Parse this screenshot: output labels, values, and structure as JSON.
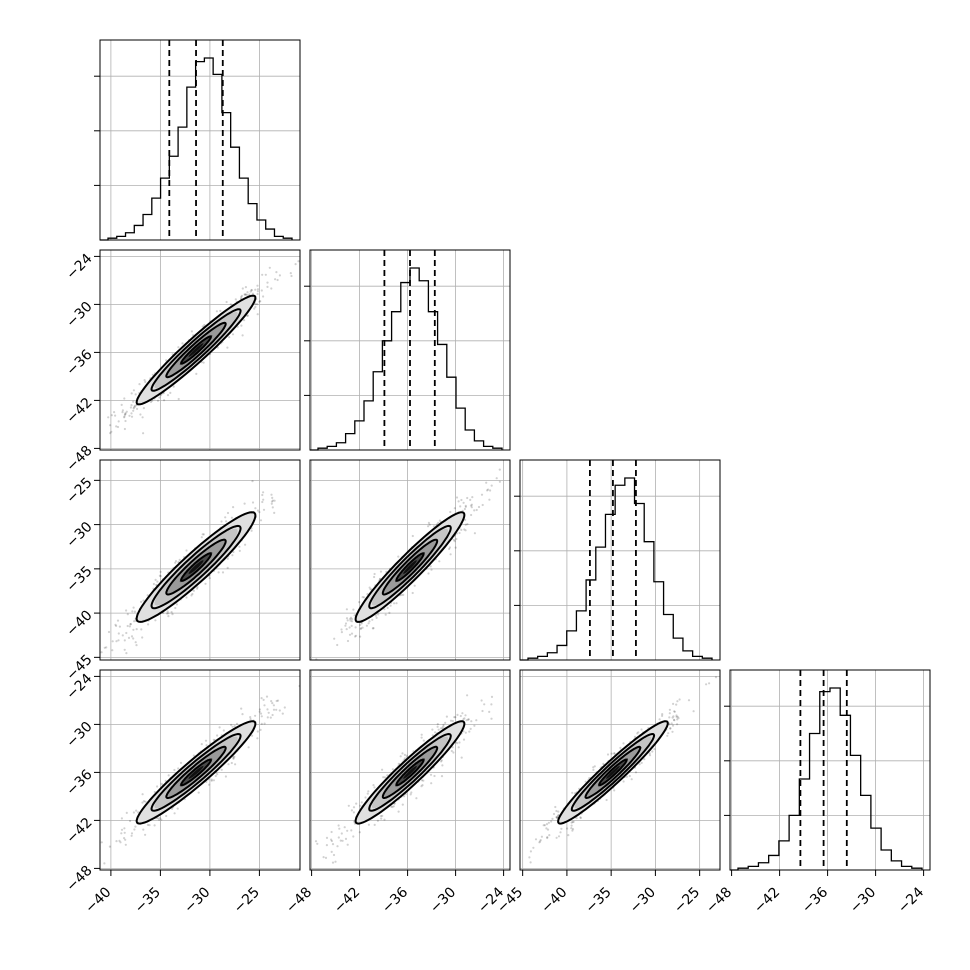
{
  "chart_data": {
    "type": "scatter",
    "subtype": "corner_plot",
    "grid": true,
    "n_params": 4,
    "params": [
      {
        "id": "p0",
        "ticks": [
          -40,
          -35,
          -30,
          -25
        ],
        "tick_labels": [
          "−40",
          "−35",
          "−30",
          "−25"
        ],
        "range": [
          -41.1,
          -20.9
        ],
        "mean": -31.4,
        "sigma": 3.0,
        "quantiles": [
          -34.1,
          -31.4,
          -28.7
        ],
        "hist_counts": [
          1,
          2,
          4,
          8,
          14,
          23,
          34,
          46,
          62,
          84,
          98,
          100,
          91,
          70,
          51,
          34,
          20,
          11,
          6,
          2,
          1
        ]
      },
      {
        "id": "p1",
        "ticks": [
          -48,
          -42,
          -36,
          -30,
          -24
        ],
        "tick_labels": [
          "−48",
          "−42",
          "−36",
          "−30",
          "−24"
        ],
        "range": [
          -48.2,
          -23.2
        ],
        "mean": -35.7,
        "sigma": 3.4,
        "quantiles": [
          -38.9,
          -35.7,
          -32.6
        ],
        "hist_counts": [
          1,
          2,
          4,
          9,
          16,
          27,
          43,
          60,
          76,
          92,
          100,
          93,
          76,
          58,
          40,
          23,
          11,
          5,
          2,
          1
        ]
      },
      {
        "id": "p2",
        "ticks": [
          -45,
          -40,
          -35,
          -30,
          -25
        ],
        "tick_labels": [
          "−45",
          "−40",
          "−35",
          "−30",
          "−25"
        ],
        "range": [
          -45.3,
          -22.7
        ],
        "mean": -34.8,
        "sigma": 3.1,
        "quantiles": [
          -37.4,
          -34.8,
          -32.2
        ],
        "hist_counts": [
          1,
          2,
          4,
          8,
          16,
          27,
          44,
          62,
          80,
          96,
          100,
          86,
          65,
          43,
          25,
          12,
          5,
          2,
          1
        ]
      },
      {
        "id": "p3",
        "ticks": [
          -48,
          -42,
          -36,
          -30,
          -24
        ],
        "tick_labels": [
          "−48",
          "−42",
          "−36",
          "−30",
          "−24"
        ],
        "range": [
          -48.2,
          -23.2
        ],
        "mean": -36.0,
        "sigma": 3.2,
        "quantiles": [
          -39.4,
          -36.5,
          -33.6
        ],
        "hist_counts": [
          1,
          2,
          4,
          8,
          16,
          30,
          50,
          75,
          98,
          100,
          85,
          63,
          41,
          23,
          11,
          5,
          2,
          1
        ]
      }
    ],
    "correlations": {
      "1_0": 0.96,
      "2_0": 0.94,
      "2_1": 0.95,
      "3_0": 0.95,
      "3_1": 0.95,
      "3_2": 0.96
    }
  }
}
